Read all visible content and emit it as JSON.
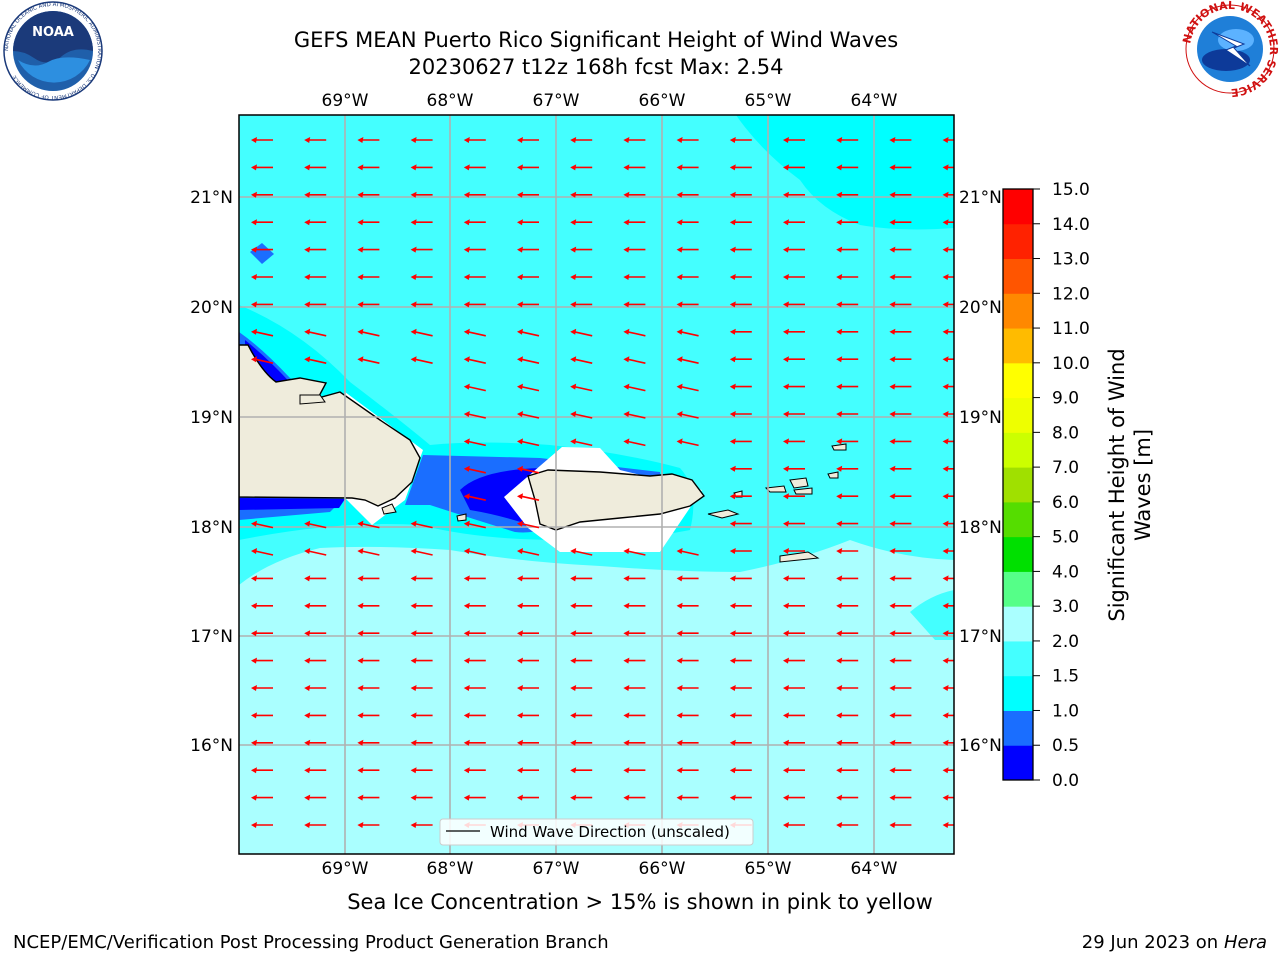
{
  "header": {
    "title_line1": "GEFS MEAN Puerto Rico Significant Height of Wind Waves",
    "title_line2": "20230627 t12z 168h fcst   Max: 2.54"
  },
  "logos": {
    "left_name": "NOAA",
    "left_ring": "NATIONAL OCEANIC AND ATMOSPHERIC ADMINISTRATION · U.S. DEPARTMENT OF COMMERCE",
    "right_ring": "NATIONAL WEATHER SERVICE"
  },
  "map": {
    "lon_labels": [
      "69°W",
      "68°W",
      "67°W",
      "66°W",
      "65°W",
      "64°W"
    ],
    "lat_labels": [
      "21°N",
      "20°N",
      "19°N",
      "18°N",
      "17°N",
      "16°N"
    ],
    "legend_text": "Wind Wave Direction (unscaled)",
    "colors": {
      "ocean_1_0_1_5": "#00ffff",
      "ocean_1_5_2_0": "#44ffff",
      "ocean_2_0_3_0": "#aaffff",
      "ocean_0_5_1_0": "#1a6eff",
      "ocean_0_0_0_5": "#0000ff",
      "land": "#efecdc",
      "arrow": "#ff0000",
      "grid": "#b0b0b0"
    }
  },
  "colorbar": {
    "label_line1": "Significant Height of Wind",
    "label_line2": "Waves [m]",
    "ticks": [
      "0.0",
      "0.5",
      "1.0",
      "1.5",
      "2.0",
      "3.0",
      "4.0",
      "5.0",
      "6.0",
      "7.0",
      "8.0",
      "9.0",
      "10.0",
      "11.0",
      "12.0",
      "13.0",
      "14.0",
      "15.0"
    ],
    "colors": [
      "#0000ff",
      "#1a6eff",
      "#00ffff",
      "#44ffff",
      "#aaffff",
      "#55ff88",
      "#00e000",
      "#55dd00",
      "#a0e000",
      "#ccff00",
      "#eeff00",
      "#ffff00",
      "#ffbb00",
      "#ff8800",
      "#ff5500",
      "#ff2200",
      "#ff0000"
    ]
  },
  "caption": "Sea Ice Concentration > 15% is shown in pink to yellow",
  "footer": {
    "left": "NCEP/EMC/Verification Post Processing Product Generation Branch",
    "right_date": "29 Jun 2023 on",
    "right_host": "Hera"
  }
}
